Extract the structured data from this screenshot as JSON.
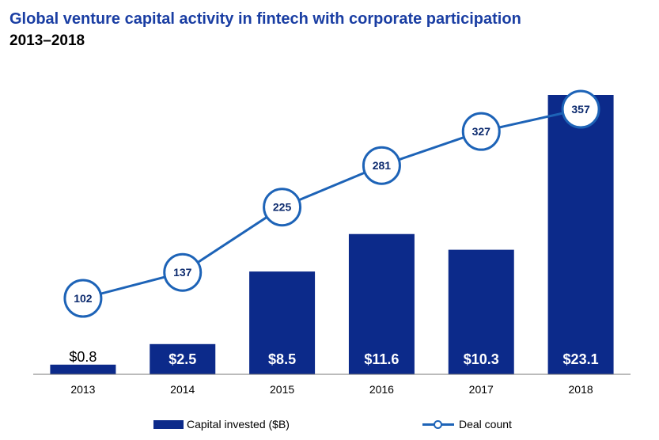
{
  "title": "Global venture capital activity in fintech with corporate participation",
  "subtitle": "2013–2018",
  "colors": {
    "bar": "#0c2a8a",
    "line": "#1d63b7",
    "title": "#1a3ea3"
  },
  "legend": {
    "bar_label": "Capital invested ($B)",
    "line_label": "Deal count"
  },
  "chart_data": {
    "type": "bar",
    "categories": [
      "2013",
      "2014",
      "2015",
      "2016",
      "2017",
      "2018"
    ],
    "series": [
      {
        "name": "Capital invested ($B)",
        "type": "bar",
        "values": [
          0.8,
          2.5,
          8.5,
          11.6,
          10.3,
          23.1
        ],
        "labels": [
          "$0.8",
          "$2.5",
          "$8.5",
          "$11.6",
          "$10.3",
          "$23.1"
        ]
      },
      {
        "name": "Deal count",
        "type": "line",
        "values": [
          102,
          137,
          225,
          281,
          327,
          357
        ],
        "labels": [
          "102",
          "137",
          "225",
          "281",
          "327",
          "357"
        ]
      }
    ],
    "bar_axis_range": [
      0,
      23.1
    ],
    "line_axis_range": [
      40,
      375
    ],
    "grid": false,
    "legend_position": "bottom"
  }
}
